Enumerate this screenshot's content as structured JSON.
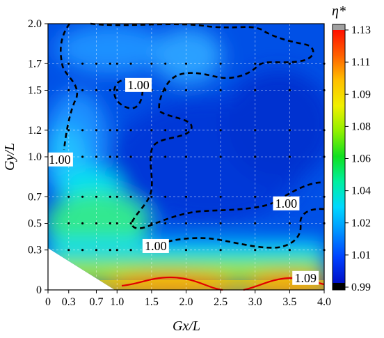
{
  "chart_data": {
    "type": "heatmap",
    "title": "",
    "xlabel": "Gx/L",
    "ylabel": "Gy/L",
    "xlim": [
      0,
      4.0
    ],
    "ylim": [
      0,
      2.0
    ],
    "x_ticks": [
      "0",
      "0.3",
      "0.7",
      "1.0",
      "1.5",
      "2.0",
      "2.5",
      "3.0",
      "3.5",
      "4.0"
    ],
    "x_tick_values": [
      0,
      0.3,
      0.7,
      1.0,
      1.5,
      2.0,
      2.5,
      3.0,
      3.5,
      4.0
    ],
    "y_ticks": [
      "0",
      "0.3",
      "0.5",
      "0.7",
      "1.0",
      "1.2",
      "1.5",
      "1.7",
      "2.0"
    ],
    "y_tick_values": [
      0,
      0.3,
      0.5,
      0.7,
      1.0,
      1.2,
      1.5,
      1.7,
      2.0
    ],
    "grid": true,
    "colorbar": {
      "title": "η*",
      "ticks": [
        "0.99",
        "1.01",
        "1.02",
        "1.04",
        "1.06",
        "1.08",
        "1.09",
        "1.11",
        "1.13"
      ],
      "tick_values": [
        0.99,
        1.01,
        1.02,
        1.04,
        1.06,
        1.08,
        1.09,
        1.11,
        1.13
      ],
      "range": [
        0.99,
        1.13
      ]
    },
    "contour_labels": [
      {
        "text": "1.00",
        "x": 0.17,
        "y": 0.98
      },
      {
        "text": "1.00",
        "x": 1.31,
        "y": 1.54
      },
      {
        "text": "1.00",
        "x": 3.45,
        "y": 0.65
      },
      {
        "text": "1.00",
        "x": 1.56,
        "y": 0.33
      },
      {
        "text": "1.09",
        "x": 3.73,
        "y": 0.09
      }
    ],
    "sample_points": {
      "x": [
        0.3,
        0.5,
        0.7,
        0.9,
        1.0,
        1.2,
        1.5,
        1.7,
        2.0,
        2.5,
        3.0,
        3.5,
        4.0
      ],
      "y": [
        0.3,
        0.5,
        0.7,
        1.0,
        1.2,
        1.5,
        1.7
      ]
    },
    "colors": {
      "low": "#0000c8",
      "mid": "#00e6ff",
      "high": "#ff0000",
      "over": "#a0a0a0",
      "under": "#000000"
    }
  }
}
